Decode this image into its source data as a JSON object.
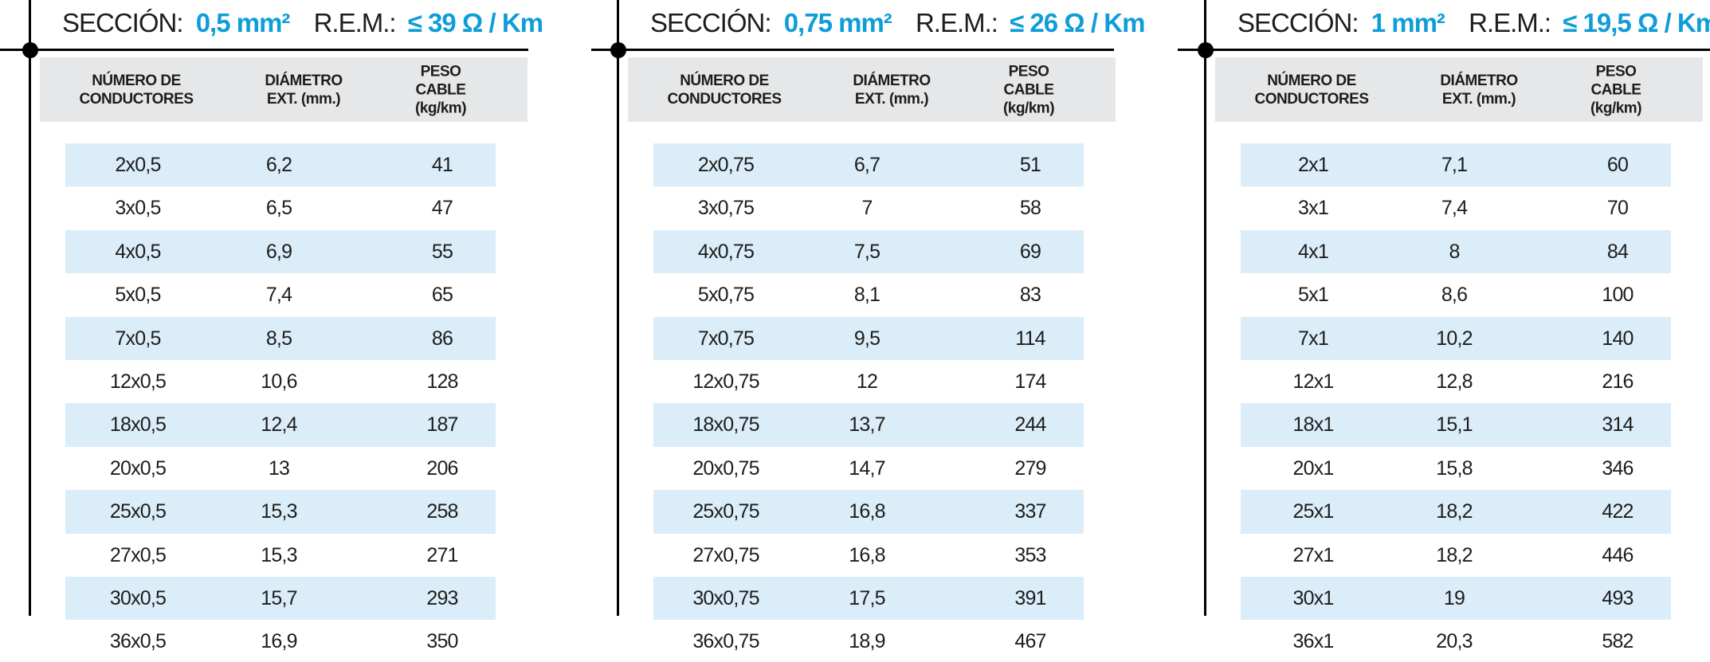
{
  "colors": {
    "accent_blue": "#0f9dd9",
    "stripe_blue": "#dbedf9",
    "header_gray": "#e6e7e8",
    "line_black": "#000000",
    "text_dark": "#1d1d1b"
  },
  "tables": [
    {
      "section_label": "SECCIÓN:",
      "section_value": "0,5 mm²",
      "rem_label": "R.E.M.:",
      "rem_value": "≤ 39 Ω / Km",
      "columns": [
        "NÚMERO DE\nCONDUCTORES",
        "DIÁMETRO\nEXT. (mm.)",
        "PESO CABLE\n(kg/km)"
      ],
      "rows": [
        [
          "2x0,5",
          "6,2",
          "41"
        ],
        [
          "3x0,5",
          "6,5",
          "47"
        ],
        [
          "4x0,5",
          "6,9",
          "55"
        ],
        [
          "5x0,5",
          "7,4",
          "65"
        ],
        [
          "7x0,5",
          "8,5",
          "86"
        ],
        [
          "12x0,5",
          "10,6",
          "128"
        ],
        [
          "18x0,5",
          "12,4",
          "187"
        ],
        [
          "20x0,5",
          "13",
          "206"
        ],
        [
          "25x0,5",
          "15,3",
          "258"
        ],
        [
          "27x0,5",
          "15,3",
          "271"
        ],
        [
          "30x0,5",
          "15,7",
          "293"
        ],
        [
          "36x0,5",
          "16,9",
          "350"
        ]
      ]
    },
    {
      "section_label": "SECCIÓN:",
      "section_value": "0,75 mm²",
      "rem_label": "R.E.M.:",
      "rem_value": "≤ 26 Ω / Km",
      "columns": [
        "NÚMERO DE\nCONDUCTORES",
        "DIÁMETRO\nEXT. (mm.)",
        "PESO CABLE\n(kg/km)"
      ],
      "rows": [
        [
          "2x0,75",
          "6,7",
          "51"
        ],
        [
          "3x0,75",
          "7",
          "58"
        ],
        [
          "4x0,75",
          "7,5",
          "69"
        ],
        [
          "5x0,75",
          "8,1",
          "83"
        ],
        [
          "7x0,75",
          "9,5",
          "114"
        ],
        [
          "12x0,75",
          "12",
          "174"
        ],
        [
          "18x0,75",
          "13,7",
          "244"
        ],
        [
          "20x0,75",
          "14,7",
          "279"
        ],
        [
          "25x0,75",
          "16,8",
          "337"
        ],
        [
          "27x0,75",
          "16,8",
          "353"
        ],
        [
          "30x0,75",
          "17,5",
          "391"
        ],
        [
          "36x0,75",
          "18,9",
          "467"
        ]
      ]
    },
    {
      "section_label": "SECCIÓN:",
      "section_value": "1 mm²",
      "rem_label": "R.E.M.:",
      "rem_value": "≤ 19,5 Ω / Km",
      "columns": [
        "NÚMERO DE\nCONDUCTORES",
        "DIÁMETRO\nEXT. (mm.)",
        "PESO CABLE\n(kg/km)"
      ],
      "rows": [
        [
          "2x1",
          "7,1",
          "60"
        ],
        [
          "3x1",
          "7,4",
          "70"
        ],
        [
          "4x1",
          "8",
          "84"
        ],
        [
          "5x1",
          "8,6",
          "100"
        ],
        [
          "7x1",
          "10,2",
          "140"
        ],
        [
          "12x1",
          "12,8",
          "216"
        ],
        [
          "18x1",
          "15,1",
          "314"
        ],
        [
          "20x1",
          "15,8",
          "346"
        ],
        [
          "25x1",
          "18,2",
          "422"
        ],
        [
          "27x1",
          "18,2",
          "446"
        ],
        [
          "30x1",
          "19",
          "493"
        ],
        [
          "36x1",
          "20,3",
          "582"
        ]
      ]
    }
  ]
}
